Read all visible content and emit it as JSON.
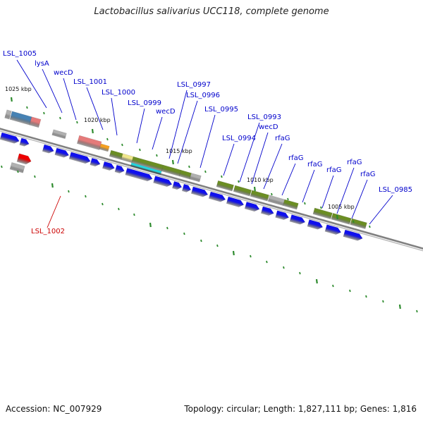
{
  "title": "Lactobacillus salivarius UCC118, complete genome",
  "footer": {
    "accession": "Accession: NC_007929",
    "summary": "Topology: circular; Length: 1,827,111 bp; Genes: 1,816"
  },
  "colors": {
    "cds": "#1010ee",
    "red": "#ee0000",
    "olive": "#6b8e23",
    "steel": "#4682b4",
    "salmon": "#e57a7a",
    "grey": "#b0b0b0",
    "orange": "#f5a020",
    "khaki": "#f0e68c",
    "cyan": "#20d8e0",
    "tick": "#2e8b2e",
    "backbone": "#808080",
    "label_blue": "#0000cc",
    "label_red": "#cc0000"
  },
  "kbp_labels": [
    "1025 kbp",
    "1020 kbp",
    "1015 kbp",
    "1010 kbp",
    "1005 kbp"
  ],
  "gene_labels": [
    {
      "text": "LSL_1005",
      "color": "blue"
    },
    {
      "text": "lysA",
      "color": "blue"
    },
    {
      "text": "wecD",
      "color": "blue"
    },
    {
      "text": "LSL_1001",
      "color": "blue"
    },
    {
      "text": "LSL_1000",
      "color": "blue"
    },
    {
      "text": "LSL_0999",
      "color": "blue"
    },
    {
      "text": "wecD",
      "color": "blue"
    },
    {
      "text": "LSL_0997",
      "color": "blue"
    },
    {
      "text": "LSL_0996",
      "color": "blue"
    },
    {
      "text": "LSL_0995",
      "color": "blue"
    },
    {
      "text": "LSL_0994",
      "color": "blue"
    },
    {
      "text": "LSL_0993",
      "color": "blue"
    },
    {
      "text": "wecD",
      "color": "blue"
    },
    {
      "text": "rfaG",
      "color": "blue"
    },
    {
      "text": "rfaG",
      "color": "blue"
    },
    {
      "text": "rfaG",
      "color": "blue"
    },
    {
      "text": "rfaG",
      "color": "blue"
    },
    {
      "text": "rfaG",
      "color": "blue"
    },
    {
      "text": "rfaG",
      "color": "blue"
    },
    {
      "text": "LSL_0985",
      "color": "blue"
    },
    {
      "text": "LSL_1002",
      "color": "red"
    }
  ]
}
